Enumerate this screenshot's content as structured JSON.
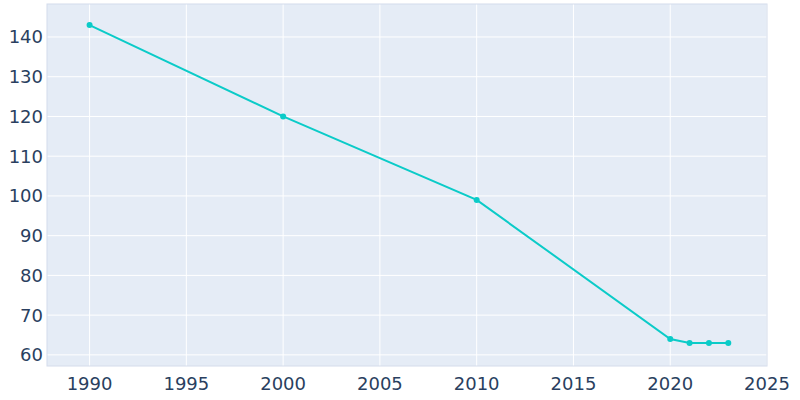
{
  "chart_data": {
    "type": "line",
    "x": [
      1990,
      2000,
      2010,
      2020,
      2021,
      2022,
      2023
    ],
    "values": [
      143,
      120,
      99,
      64,
      63,
      63,
      63
    ],
    "color": "#0bcbc8",
    "marker": "circle",
    "xlim": [
      1987.8,
      2025
    ],
    "xticks": [
      1990,
      1995,
      2000,
      2005,
      2010,
      2015,
      2020,
      2025
    ],
    "ylim": [
      57.2,
      148.3
    ],
    "yticks": [
      60,
      70,
      80,
      90,
      100,
      110,
      120,
      130,
      140
    ],
    "grid": true
  }
}
